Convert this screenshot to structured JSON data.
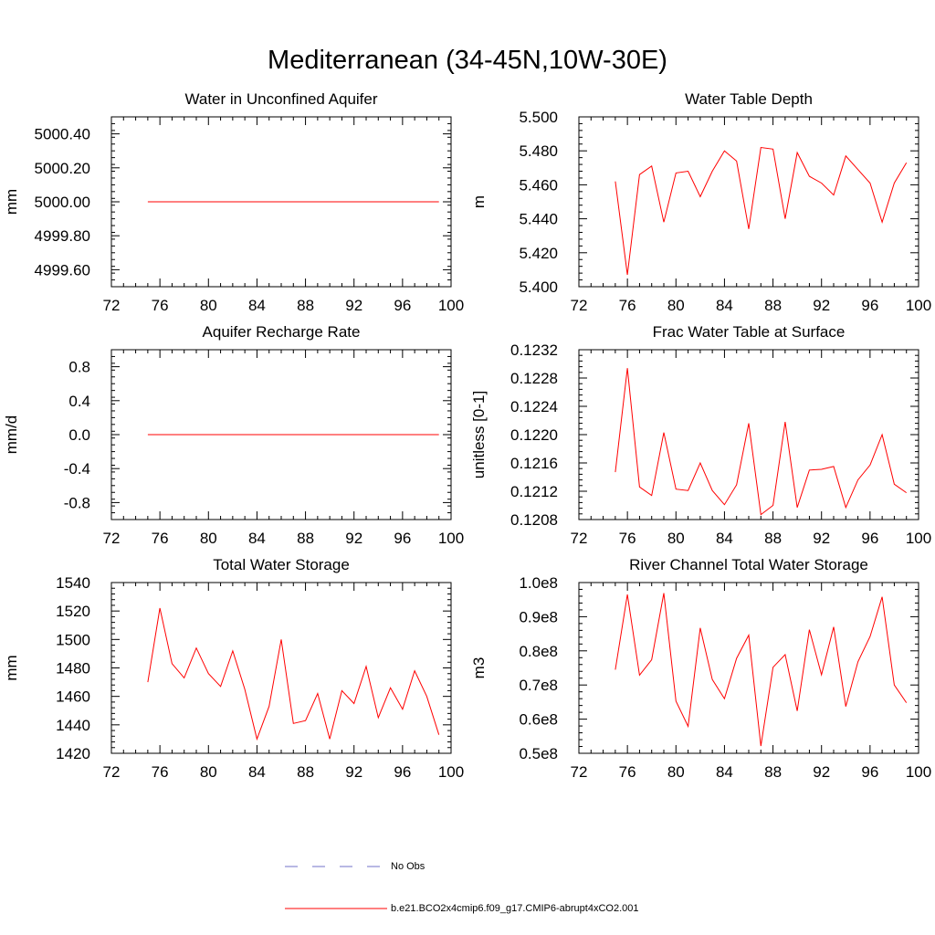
{
  "title": "Mediterranean (34-45N,10W-30E)",
  "colors": {
    "series": "#ff0000",
    "obs": "#7070c8",
    "axis": "#000000"
  },
  "legend": {
    "obs_label": "No Obs",
    "model_label": "b.e21.BCO2x4cmip6.f09_g17.CMIP6-abrupt4xCO2.001"
  },
  "chart_data": [
    {
      "type": "line",
      "title": "Water in Unconfined Aquifer",
      "ylabel": "mm",
      "xlabel": "",
      "xlim": [
        72,
        100
      ],
      "ylim": [
        4999.5,
        5000.5
      ],
      "xticks": [
        72,
        76,
        80,
        84,
        88,
        92,
        96,
        100
      ],
      "yticks": [
        4999.6,
        4999.8,
        5000.0,
        5000.2,
        5000.4
      ],
      "ytick_labels": [
        "4999.60",
        "4999.80",
        "5000.00",
        "5000.20",
        "5000.40"
      ],
      "series": [
        {
          "name": "b.e21.BCO2x4cmip6.f09_g17.CMIP6-abrupt4xCO2.001",
          "x": [
            75,
            76,
            77,
            78,
            79,
            80,
            81,
            82,
            83,
            84,
            85,
            86,
            87,
            88,
            89,
            90,
            91,
            92,
            93,
            94,
            95,
            96,
            97,
            98,
            99
          ],
          "values": [
            5000,
            5000,
            5000,
            5000,
            5000,
            5000,
            5000,
            5000,
            5000,
            5000,
            5000,
            5000,
            5000,
            5000,
            5000,
            5000,
            5000,
            5000,
            5000,
            5000,
            5000,
            5000,
            5000,
            5000,
            5000
          ]
        }
      ]
    },
    {
      "type": "line",
      "title": "Water Table Depth",
      "ylabel": "m",
      "xlabel": "",
      "xlim": [
        72,
        100
      ],
      "ylim": [
        5.4,
        5.5
      ],
      "xticks": [
        72,
        76,
        80,
        84,
        88,
        92,
        96,
        100
      ],
      "yticks": [
        5.4,
        5.42,
        5.44,
        5.46,
        5.48,
        5.5
      ],
      "ytick_labels": [
        "5.400",
        "5.420",
        "5.440",
        "5.460",
        "5.480",
        "5.500"
      ],
      "series": [
        {
          "name": "b.e21.BCO2x4cmip6.f09_g17.CMIP6-abrupt4xCO2.001",
          "x": [
            75,
            76,
            77,
            78,
            79,
            80,
            81,
            82,
            83,
            84,
            85,
            86,
            87,
            88,
            89,
            90,
            91,
            92,
            93,
            94,
            95,
            96,
            97,
            98,
            99
          ],
          "values": [
            5.462,
            5.407,
            5.466,
            5.471,
            5.438,
            5.467,
            5.468,
            5.453,
            5.468,
            5.48,
            5.474,
            5.434,
            5.482,
            5.481,
            5.44,
            5.479,
            5.465,
            5.461,
            5.454,
            5.477,
            5.469,
            5.461,
            5.438,
            5.461,
            5.473
          ]
        }
      ]
    },
    {
      "type": "line",
      "title": "Aquifer Recharge Rate",
      "ylabel": "mm/d",
      "xlabel": "",
      "xlim": [
        72,
        100
      ],
      "ylim": [
        -1.0,
        1.0
      ],
      "xticks": [
        72,
        76,
        80,
        84,
        88,
        92,
        96,
        100
      ],
      "yticks": [
        -0.8,
        -0.4,
        0.0,
        0.4,
        0.8
      ],
      "ytick_labels": [
        "-0.8",
        "-0.4",
        "0.0",
        "0.4",
        "0.8"
      ],
      "series": [
        {
          "name": "b.e21.BCO2x4cmip6.f09_g17.CMIP6-abrupt4xCO2.001",
          "x": [
            75,
            76,
            77,
            78,
            79,
            80,
            81,
            82,
            83,
            84,
            85,
            86,
            87,
            88,
            89,
            90,
            91,
            92,
            93,
            94,
            95,
            96,
            97,
            98,
            99
          ],
          "values": [
            0,
            0,
            0,
            0,
            0,
            0,
            0,
            0,
            0,
            0,
            0,
            0,
            0,
            0,
            0,
            0,
            0,
            0,
            0,
            0,
            0,
            0,
            0,
            0,
            0
          ]
        }
      ]
    },
    {
      "type": "line",
      "title": "Frac Water Table at Surface",
      "ylabel": "unitless [0-1]",
      "xlabel": "",
      "xlim": [
        72,
        100
      ],
      "ylim": [
        0.1208,
        0.1232
      ],
      "xticks": [
        72,
        76,
        80,
        84,
        88,
        92,
        96,
        100
      ],
      "yticks": [
        0.1208,
        0.1212,
        0.1216,
        0.122,
        0.1224,
        0.1228,
        0.1232
      ],
      "ytick_labels": [
        "0.1208",
        "0.1212",
        "0.1216",
        "0.1220",
        "0.1224",
        "0.1228",
        "0.1232"
      ],
      "series": [
        {
          "name": "b.e21.BCO2x4cmip6.f09_g17.CMIP6-abrupt4xCO2.001",
          "x": [
            75,
            76,
            77,
            78,
            79,
            80,
            81,
            82,
            83,
            84,
            85,
            86,
            87,
            88,
            89,
            90,
            91,
            92,
            93,
            94,
            95,
            96,
            97,
            98,
            99
          ],
          "values": [
            0.12147,
            0.12294,
            0.12126,
            0.12114,
            0.12203,
            0.12123,
            0.12121,
            0.1216,
            0.12121,
            0.12101,
            0.12129,
            0.12216,
            0.12087,
            0.121,
            0.12218,
            0.12097,
            0.1215,
            0.12151,
            0.12155,
            0.12097,
            0.12136,
            0.12157,
            0.122,
            0.1213,
            0.12118
          ]
        }
      ]
    },
    {
      "type": "line",
      "title": "Total Water Storage",
      "ylabel": "mm",
      "xlabel": "",
      "xlim": [
        72,
        100
      ],
      "ylim": [
        1420,
        1540
      ],
      "xticks": [
        72,
        76,
        80,
        84,
        88,
        92,
        96,
        100
      ],
      "yticks": [
        1420,
        1440,
        1460,
        1480,
        1500,
        1520,
        1540
      ],
      "ytick_labels": [
        "1420",
        "1440",
        "1460",
        "1480",
        "1500",
        "1520",
        "1540"
      ],
      "series": [
        {
          "name": "b.e21.BCO2x4cmip6.f09_g17.CMIP6-abrupt4xCO2.001",
          "x": [
            75,
            76,
            77,
            78,
            79,
            80,
            81,
            82,
            83,
            84,
            85,
            86,
            87,
            88,
            89,
            90,
            91,
            92,
            93,
            94,
            95,
            96,
            97,
            98,
            99
          ],
          "values": [
            1470,
            1522,
            1483,
            1473,
            1494,
            1476,
            1467,
            1492,
            1465,
            1430,
            1453,
            1500,
            1441,
            1443,
            1462,
            1430,
            1464,
            1455,
            1481,
            1445,
            1466,
            1451,
            1478,
            1460,
            1433
          ]
        }
      ]
    },
    {
      "type": "line",
      "title": "River Channel Total Water Storage",
      "ylabel": "m3",
      "xlabel": "",
      "xlim": [
        72,
        100
      ],
      "ylim": [
        0.5,
        1.0
      ],
      "xticks": [
        72,
        76,
        80,
        84,
        88,
        92,
        96,
        100
      ],
      "yticks": [
        0.5,
        0.6,
        0.7,
        0.8,
        0.9,
        1.0
      ],
      "ytick_labels": [
        "0.5e8",
        "0.6e8",
        "0.7e8",
        "0.8e8",
        "0.9e8",
        "1.0e8"
      ],
      "units_note": "values in 1e8",
      "series": [
        {
          "name": "b.e21.BCO2x4cmip6.f09_g17.CMIP6-abrupt4xCO2.001",
          "x": [
            75,
            76,
            77,
            78,
            79,
            80,
            81,
            82,
            83,
            84,
            85,
            86,
            87,
            88,
            89,
            90,
            91,
            92,
            93,
            94,
            95,
            96,
            97,
            98,
            99
          ],
          "values": [
            0.745,
            0.965,
            0.729,
            0.774,
            0.969,
            0.653,
            0.579,
            0.867,
            0.716,
            0.66,
            0.778,
            0.846,
            0.521,
            0.752,
            0.789,
            0.624,
            0.862,
            0.73,
            0.87,
            0.637,
            0.768,
            0.842,
            0.958,
            0.7,
            0.648
          ]
        }
      ]
    }
  ]
}
